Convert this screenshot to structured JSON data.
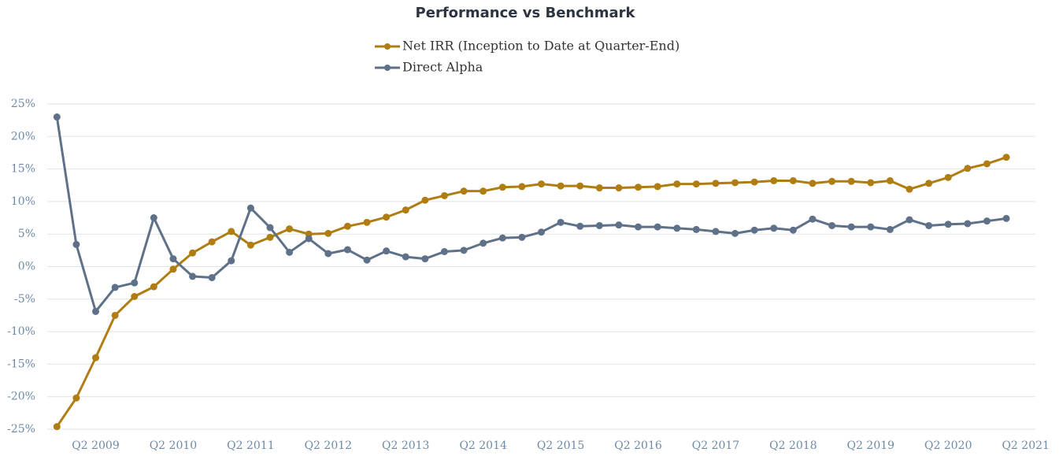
{
  "chart_data": {
    "type": "line",
    "title": "Performance vs Benchmark",
    "categories": [
      null,
      null,
      "Q2 2009",
      null,
      null,
      null,
      "Q2 2010",
      null,
      null,
      null,
      "Q2 2011",
      null,
      null,
      null,
      "Q2 2012",
      null,
      null,
      null,
      "Q2 2013",
      null,
      null,
      null,
      "Q2 2014",
      null,
      null,
      null,
      "Q2 2015",
      null,
      null,
      null,
      "Q2 2016",
      null,
      null,
      null,
      "Q2 2017",
      null,
      null,
      null,
      "Q2 2018",
      null,
      null,
      null,
      "Q2 2019",
      null,
      null,
      null,
      "Q2 2020",
      null,
      null,
      null,
      "Q2 2021"
    ],
    "series": [
      {
        "name": "Net IRR (Inception to Date at Quarter-End)",
        "color": "#b07d12",
        "values": [
          -24.6,
          -20.2,
          -14.0,
          -7.5,
          -4.6,
          -3.1,
          -0.4,
          2.1,
          3.8,
          5.4,
          3.3,
          4.5,
          5.8,
          5.0,
          5.1,
          6.2,
          6.8,
          7.6,
          8.7,
          10.2,
          10.9,
          11.6,
          11.6,
          12.2,
          12.3,
          12.7,
          12.4,
          12.4,
          12.1,
          12.1,
          12.2,
          12.3,
          12.7,
          12.7,
          12.8,
          12.9,
          13.0,
          13.2,
          13.2,
          12.8,
          13.1,
          13.1,
          12.9,
          13.2,
          11.9,
          12.8,
          13.7,
          15.1,
          15.8,
          16.8,
          null
        ]
      },
      {
        "name": "Direct Alpha",
        "color": "#5f7089",
        "values": [
          23.0,
          3.4,
          -6.9,
          -3.2,
          -2.5,
          7.5,
          1.2,
          -1.5,
          -1.7,
          0.9,
          9.0,
          6.0,
          2.2,
          4.3,
          2.0,
          2.6,
          1.0,
          2.4,
          1.5,
          1.2,
          2.3,
          2.5,
          3.6,
          4.4,
          4.5,
          5.3,
          6.8,
          6.2,
          6.3,
          6.4,
          6.1,
          6.1,
          5.9,
          5.7,
          5.4,
          5.1,
          5.6,
          5.9,
          5.6,
          7.3,
          6.3,
          6.1,
          6.1,
          5.7,
          7.2,
          6.3,
          6.5,
          6.6,
          7.0,
          7.4,
          null
        ]
      }
    ],
    "ylim": [
      -25,
      25
    ],
    "yticks": [
      {
        "value": -25,
        "label": "-25%"
      },
      {
        "value": -20,
        "label": "-20%"
      },
      {
        "value": -15,
        "label": "-15%"
      },
      {
        "value": -10,
        "label": "-10%"
      },
      {
        "value": -5,
        "label": "-5%"
      },
      {
        "value": 0,
        "label": "0%"
      },
      {
        "value": 5,
        "label": "5%"
      },
      {
        "value": 10,
        "label": "10%"
      },
      {
        "value": 15,
        "label": "15%"
      },
      {
        "value": 20,
        "label": "20%"
      },
      {
        "value": 25,
        "label": "25%"
      }
    ],
    "grid": true,
    "legend": "top"
  }
}
